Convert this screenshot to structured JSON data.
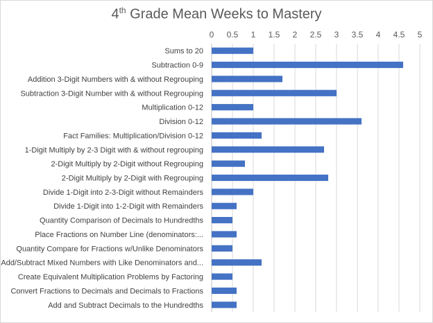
{
  "chart_data": {
    "type": "bar",
    "orientation": "horizontal",
    "title_main": "4",
    "title_sup": "th",
    "title_rest": " Grade Mean Weeks to Mastery",
    "xlim": [
      0,
      5
    ],
    "ticks": [
      "0",
      "0.5",
      "1",
      "1.5",
      "2",
      "2.5",
      "3",
      "3.5",
      "4",
      "4.5",
      "5"
    ],
    "gridlines": true,
    "axis_position": "top",
    "bar_color": "#4472c4",
    "categories": [
      "Sums to 20",
      "Subtraction 0-9",
      "Addition 3-Digit Numbers with & without Regrouping",
      "Subtraction 3-Digit Number with & without Regrouping",
      "Multiplication 0-12",
      "Division 0-12",
      "Fact Families: Multiplication/Division 0-12",
      "1-Digit Multiply by 2-3 Digit with & without regrouping",
      "2-Digit Multiply by 2-Digit without Regrouping",
      "2-Digit Multiply by 2-Digit with Regrouping",
      "Divide 1-Digit into 2-3-Digit without Remainders",
      "Divide 1-Digit into 1-2-Digit with Remainders",
      "Quantity Comparison of Decimals to Hundredths",
      "Place Fractions on Number Line (denominators:...",
      "Quantity Compare for Fractions w/Unlike Denominators",
      "Add/Subtract Mixed Numbers with Like Denominators and...",
      "Create Equivalent Multiplication Problems by Factoring",
      "Convert Fractions to Decimals and Decimals to Fractions",
      "Add and Subtract Decimals to the Hundredths"
    ],
    "values": [
      1.0,
      4.6,
      1.7,
      3.0,
      1.0,
      3.6,
      1.2,
      2.7,
      0.8,
      2.8,
      1.0,
      0.6,
      0.5,
      0.6,
      0.5,
      1.2,
      0.5,
      0.6,
      0.6
    ]
  }
}
